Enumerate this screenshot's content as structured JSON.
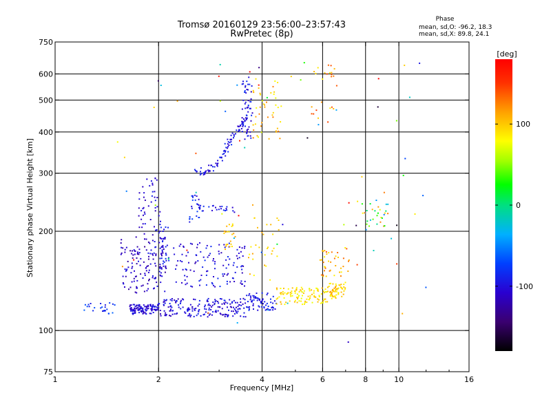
{
  "chart_data": {
    "type": "scatter",
    "title": "Tromsø 20160129 23:56:00–23:57:43",
    "subtitle": "RwPretec (8p)",
    "xlabel": "Frequency [MHz]",
    "ylabel": "Stationary phase Virtual Height [km]",
    "xscale": "log",
    "yscale": "log",
    "xlim": [
      1,
      16
    ],
    "ylim": [
      75,
      750
    ],
    "xticks": [
      1,
      2,
      4,
      6,
      8,
      10,
      16
    ],
    "xtick_labels": [
      "1",
      "2",
      "4",
      "6",
      "8",
      "10",
      "16"
    ],
    "xgrid": [
      2,
      4,
      6,
      8,
      10
    ],
    "yticks": [
      75,
      100,
      200,
      300,
      400,
      500,
      600,
      750
    ],
    "ytick_labels": [
      "75",
      "100",
      "200",
      "300",
      "400",
      "500",
      "600",
      "750"
    ],
    "ygrid": [
      100,
      200,
      300,
      400,
      500,
      600
    ],
    "grid": true,
    "phase_stats": {
      "title": "Phase",
      "o_line": "mean, sd,O: -96.2, 18.3",
      "x_line": "mean, sd,X:  89.8, 24.1"
    },
    "colorbar": {
      "label": "[deg]",
      "range": [
        -180,
        180
      ],
      "ticks": [
        100,
        0,
        -100
      ],
      "tick_labels": [
        "100",
        "0",
        "-100"
      ],
      "colormap": "rainbow"
    },
    "clusters": [
      {
        "f": [
          1.65,
          2.0
        ],
        "h": [
          112,
          120
        ],
        "phase": [
          -120,
          -90
        ],
        "n": 110
      },
      {
        "f": [
          2.0,
          3.6
        ],
        "h": [
          110,
          125
        ],
        "phase": [
          -120,
          -85
        ],
        "n": 190
      },
      {
        "f": [
          3.6,
          4.4
        ],
        "h": [
          115,
          130
        ],
        "phase": [
          -110,
          -80
        ],
        "n": 70
      },
      {
        "f": [
          4.4,
          6.2
        ],
        "h": [
          120,
          135
        ],
        "phase": [
          70,
          110
        ],
        "n": 110
      },
      {
        "f": [
          6.2,
          7.0
        ],
        "h": [
          125,
          140
        ],
        "phase": [
          75,
          115
        ],
        "n": 60
      },
      {
        "f": [
          1.2,
          1.5
        ],
        "h": [
          112,
          122
        ],
        "phase": [
          -100,
          -60
        ],
        "n": 25
      },
      {
        "f": [
          1.55,
          2.1
        ],
        "h": [
          130,
          200
        ],
        "phase": [
          -130,
          -90
        ],
        "n": 140
      },
      {
        "f": [
          1.75,
          2.05
        ],
        "h": [
          200,
          290
        ],
        "phase": [
          -120,
          -90
        ],
        "n": 45
      },
      {
        "f": [
          2.0,
          2.15
        ],
        "h": [
          150,
          215
        ],
        "phase": [
          -110,
          -80
        ],
        "n": 40
      },
      {
        "f": [
          2.2,
          3.6
        ],
        "h": [
          135,
          185
        ],
        "phase": [
          -120,
          -80
        ],
        "n": 120
      },
      {
        "f": [
          2.45,
          2.65
        ],
        "h": [
          210,
          260
        ],
        "phase": [
          -110,
          -70
        ],
        "n": 22
      },
      {
        "f": [
          2.6,
          3.3
        ],
        "h": [
          230,
          240
        ],
        "phase": [
          -110,
          -80
        ],
        "n": 25
      },
      {
        "f": [
          3.1,
          3.35
        ],
        "h": [
          175,
          212
        ],
        "phase": [
          80,
          115
        ],
        "n": 22
      },
      {
        "f": [
          3.65,
          4.5
        ],
        "h": [
          140,
          220
        ],
        "phase": [
          80,
          120
        ],
        "n": 30
      },
      {
        "f": [
          5.9,
          7.2
        ],
        "h": [
          145,
          180
        ],
        "phase": [
          80,
          140
        ],
        "n": 40
      },
      {
        "f": [
          7.8,
          9.3
        ],
        "h": [
          200,
          245
        ],
        "phase": [
          -60,
          140
        ],
        "n": 30
      },
      {
        "f": [
          3.5,
          3.75
        ],
        "h": [
          370,
          600
        ],
        "phase": [
          -120,
          -75
        ],
        "n": 55
      },
      {
        "f": [
          3.75,
          4.6
        ],
        "h": [
          380,
          580
        ],
        "phase": [
          70,
          130
        ],
        "n": 45
      },
      {
        "f": [
          5.5,
          6.6
        ],
        "h": [
          420,
          650
        ],
        "phase": [
          80,
          150
        ],
        "n": 25
      },
      {
        "f": [
          1.5,
          12.0
        ],
        "h": [
          90,
          650
        ],
        "phase": [
          -180,
          180
        ],
        "n": 70
      }
    ],
    "curves": [
      {
        "f": [
          2.55,
          2.75,
          2.95,
          3.1,
          3.25,
          3.4,
          3.55
        ],
        "h": [
          302,
          304,
          318,
          345,
          380,
          410,
          430
        ],
        "phase": [
          -110,
          -80
        ],
        "n": 90
      }
    ]
  }
}
